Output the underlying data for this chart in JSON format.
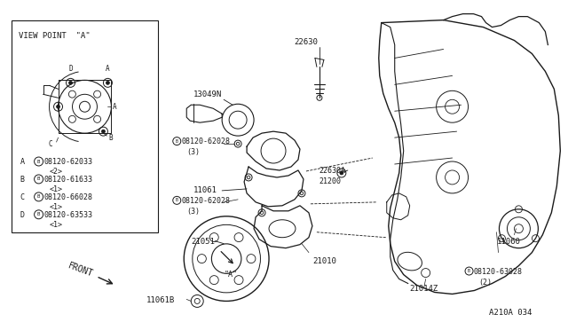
{
  "bg_color": "#ffffff",
  "line_color": "#1a1a1a",
  "lw": 0.8,
  "ref_code": "A210A 034",
  "viewpoint_label": "VIEW POINT  \"A\"",
  "legend_items": [
    {
      "letter": "A",
      "part": "08120-62033",
      "qty": "<2>"
    },
    {
      "letter": "B",
      "part": "08120-61633",
      "qty": "<1>"
    },
    {
      "letter": "C",
      "part": "08120-66028",
      "qty": "<1>"
    },
    {
      "letter": "D",
      "part": "08120-63533",
      "qty": "<1>"
    }
  ]
}
